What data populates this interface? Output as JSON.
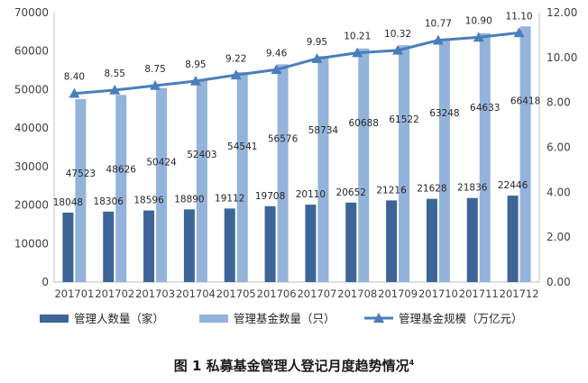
{
  "chart_data": {
    "type": "bar",
    "title": "图 1  私募基金管理人登记月度趋势情况",
    "title_note": "4",
    "categories": [
      "201701",
      "201702",
      "201703",
      "201704",
      "201705",
      "201706",
      "201707",
      "201708",
      "201709",
      "201710",
      "201711",
      "201712"
    ],
    "series": [
      {
        "name": "管理人数量（家）",
        "type": "bar",
        "axis": "left",
        "color": "#3d6597",
        "values": [
          18048,
          18306,
          18596,
          18890,
          19112,
          19708,
          20110,
          20652,
          21216,
          21628,
          21836,
          22446
        ]
      },
      {
        "name": "管理基金数量（只）",
        "type": "bar",
        "axis": "left",
        "color": "#93b3da",
        "values": [
          47523,
          48626,
          50424,
          52403,
          54541,
          56576,
          58734,
          60688,
          61522,
          63248,
          64633,
          66418
        ]
      },
      {
        "name": "管理基金规模（万亿元）",
        "type": "line",
        "axis": "right",
        "color": "#4a7ebb",
        "marker": "triangle",
        "values": [
          8.4,
          8.55,
          8.75,
          8.95,
          9.22,
          9.46,
          9.95,
          10.21,
          10.32,
          10.77,
          10.9,
          11.1
        ],
        "labels": [
          "8.40",
          "8.55",
          "8.75",
          "8.95",
          "9.22",
          "9.46",
          "9.95",
          "10.21",
          "10.32",
          "10.77",
          "10.90",
          "11.10"
        ]
      }
    ],
    "ylim_left": [
      0,
      70000
    ],
    "yticks_left": [
      "0",
      "10000",
      "20000",
      "30000",
      "40000",
      "50000",
      "60000",
      "70000"
    ],
    "ylim_right": [
      0,
      12
    ],
    "yticks_right": [
      "0.00",
      "2.00",
      "4.00",
      "6.00",
      "8.00",
      "10.00",
      "12.00"
    ],
    "grid": false,
    "legend_position": "bottom"
  }
}
